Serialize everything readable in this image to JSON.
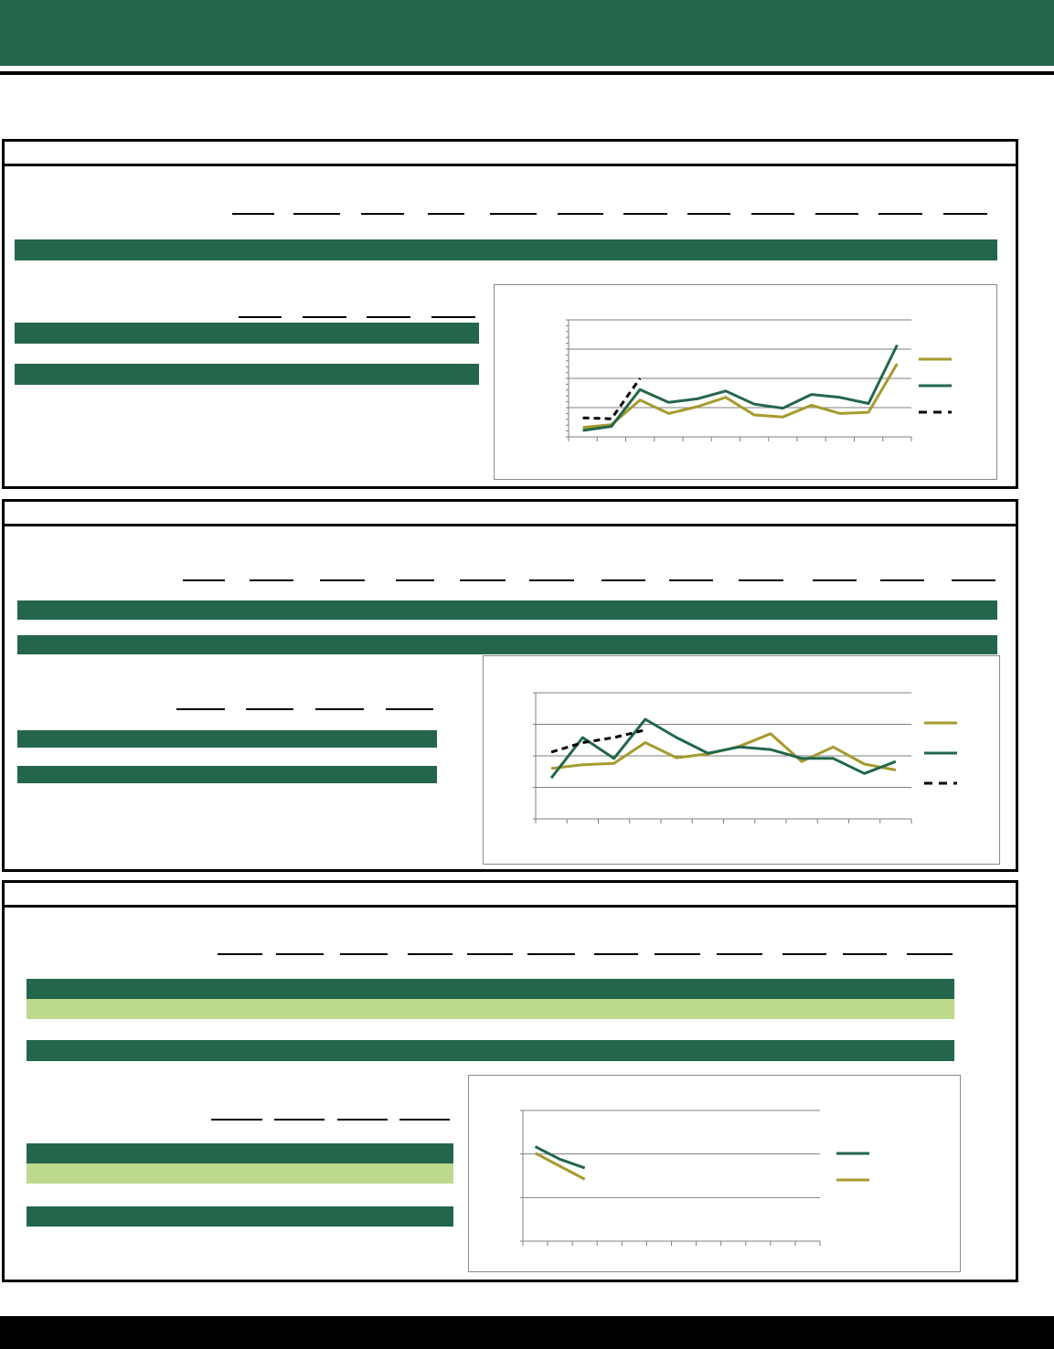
{
  "colors": {
    "brand_dark_green": "#23664b",
    "light_green": "#bcd98e",
    "olive": "#a59a2e",
    "black": "#000000"
  },
  "chart_data": [
    {
      "type": "line",
      "x": [
        1,
        2,
        3,
        4,
        5,
        6,
        7,
        8,
        9,
        10,
        11,
        12
      ],
      "ylim": [
        0,
        4
      ],
      "grid": true,
      "legend": "right",
      "series": [
        {
          "color": "#a59a2e",
          "style": "solid",
          "values": [
            0.32,
            0.42,
            1.26,
            0.8,
            1.03,
            1.35,
            0.75,
            0.68,
            1.08,
            0.8,
            0.84,
            2.5
          ]
        },
        {
          "color": "#23664b",
          "style": "solid",
          "values": [
            0.22,
            0.36,
            1.62,
            1.18,
            1.3,
            1.57,
            1.12,
            0.98,
            1.45,
            1.35,
            1.14,
            3.14
          ]
        },
        {
          "color": "#000000",
          "style": "dashed",
          "values": [
            0.65,
            0.62,
            2.0,
            null,
            null,
            null,
            null,
            null,
            null,
            null,
            null,
            null
          ]
        }
      ]
    },
    {
      "type": "line",
      "x": [
        1,
        2,
        3,
        4,
        5,
        6,
        7,
        8,
        9,
        10,
        11,
        12
      ],
      "ylim": [
        0,
        4
      ],
      "grid": true,
      "legend": "right",
      "series": [
        {
          "color": "#a59a2e",
          "style": "solid",
          "values": [
            1.6,
            1.72,
            1.76,
            2.42,
            1.94,
            2.06,
            2.3,
            2.7,
            1.82,
            2.28,
            1.74,
            1.55
          ]
        },
        {
          "color": "#23664b",
          "style": "solid",
          "values": [
            1.3,
            2.58,
            1.92,
            3.16,
            2.58,
            2.08,
            2.28,
            2.2,
            1.92,
            1.92,
            1.44,
            1.82
          ]
        },
        {
          "color": "#000000",
          "style": "dashed",
          "values": [
            2.12,
            2.42,
            2.58,
            2.82,
            null,
            null,
            null,
            null,
            null,
            null,
            null,
            null
          ]
        }
      ]
    },
    {
      "type": "line",
      "x": [
        1,
        2,
        3,
        4,
        5,
        6,
        7,
        8,
        9,
        10,
        11,
        12
      ],
      "ylim": [
        0,
        3
      ],
      "grid": true,
      "legend": "right",
      "series": [
        {
          "color": "#23664b",
          "style": "solid",
          "values": [
            2.17,
            1.88,
            1.68,
            null,
            null,
            null,
            null,
            null,
            null,
            null,
            null,
            null
          ]
        },
        {
          "color": "#a59a2e",
          "style": "solid",
          "values": [
            2.02,
            1.72,
            1.42,
            null,
            null,
            null,
            null,
            null,
            null,
            null,
            null,
            null
          ]
        }
      ]
    }
  ]
}
